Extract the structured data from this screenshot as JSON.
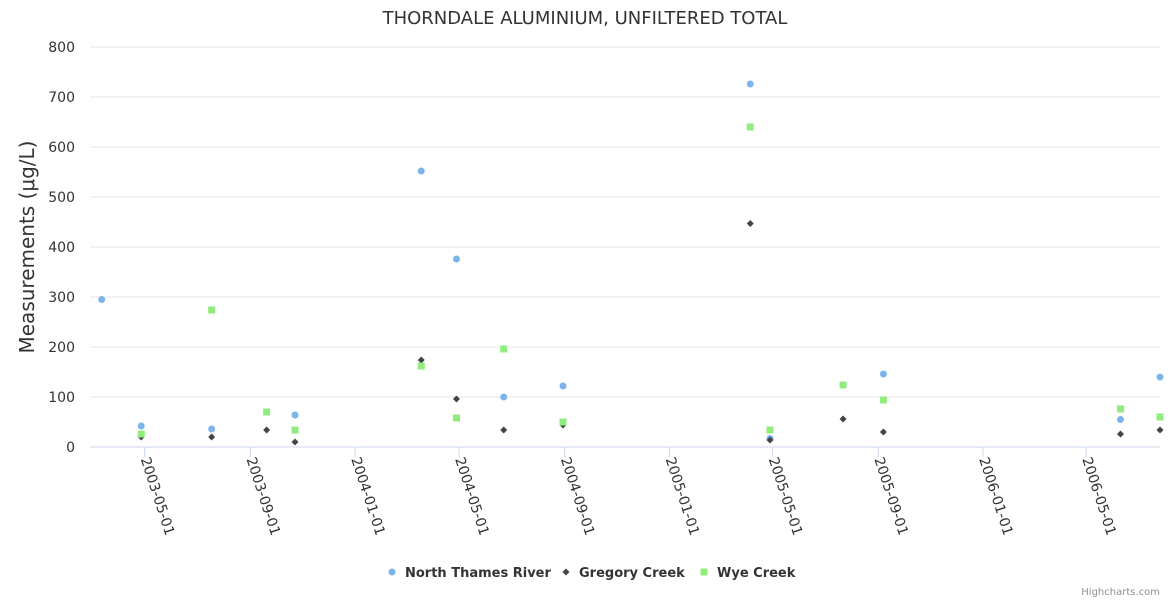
{
  "chart_data": {
    "type": "scatter",
    "title": "THORNDALE ALUMINIUM, UNFILTERED TOTAL",
    "ylabel": "Measurements (μg/L)",
    "xlabel": "",
    "ylim": [
      0,
      800
    ],
    "yticks": [
      0,
      100,
      200,
      300,
      400,
      500,
      600,
      700,
      800
    ],
    "xlim": [
      "2003-03-10",
      "2006-07-26"
    ],
    "xticks": [
      "2003-05-01",
      "2003-09-01",
      "2004-01-01",
      "2004-05-01",
      "2004-09-01",
      "2005-01-01",
      "2005-05-01",
      "2005-09-01",
      "2006-01-01",
      "2006-05-01"
    ],
    "grid": true,
    "legend_position": "bottom-center",
    "series": [
      {
        "name": "North Thames River",
        "color": "#7cb5ec",
        "marker": "circle",
        "points": [
          {
            "x": "2003-03-12",
            "y": 295
          },
          {
            "x": "2003-04-27",
            "y": 42
          },
          {
            "x": "2003-07-18",
            "y": 36
          },
          {
            "x": "2003-10-23",
            "y": 64
          },
          {
            "x": "2004-03-18",
            "y": 552
          },
          {
            "x": "2004-04-28",
            "y": 376
          },
          {
            "x": "2004-06-22",
            "y": 100
          },
          {
            "x": "2004-08-30",
            "y": 122
          },
          {
            "x": "2005-04-05",
            "y": 726
          },
          {
            "x": "2005-04-28",
            "y": 17
          },
          {
            "x": "2005-09-07",
            "y": 146
          },
          {
            "x": "2006-06-10",
            "y": 55
          },
          {
            "x": "2006-07-26",
            "y": 140
          }
        ]
      },
      {
        "name": "Gregory Creek",
        "color": "#434348",
        "marker": "diamond",
        "points": [
          {
            "x": "2003-04-27",
            "y": 20
          },
          {
            "x": "2003-07-18",
            "y": 20
          },
          {
            "x": "2003-09-20",
            "y": 34
          },
          {
            "x": "2003-10-23",
            "y": 10
          },
          {
            "x": "2004-03-18",
            "y": 174
          },
          {
            "x": "2004-04-28",
            "y": 96
          },
          {
            "x": "2004-06-22",
            "y": 34
          },
          {
            "x": "2004-08-30",
            "y": 44
          },
          {
            "x": "2005-04-05",
            "y": 447
          },
          {
            "x": "2005-04-28",
            "y": 14
          },
          {
            "x": "2005-07-22",
            "y": 56
          },
          {
            "x": "2005-09-07",
            "y": 30
          },
          {
            "x": "2006-06-10",
            "y": 26
          },
          {
            "x": "2006-07-26",
            "y": 34
          }
        ]
      },
      {
        "name": "Wye Creek",
        "color": "#90ed7d",
        "marker": "square",
        "points": [
          {
            "x": "2003-04-27",
            "y": 26
          },
          {
            "x": "2003-07-18",
            "y": 274
          },
          {
            "x": "2003-09-20",
            "y": 70
          },
          {
            "x": "2003-10-23",
            "y": 34
          },
          {
            "x": "2004-03-18",
            "y": 162
          },
          {
            "x": "2004-04-28",
            "y": 58
          },
          {
            "x": "2004-06-22",
            "y": 196
          },
          {
            "x": "2004-08-30",
            "y": 50
          },
          {
            "x": "2005-04-05",
            "y": 640
          },
          {
            "x": "2005-04-28",
            "y": 34
          },
          {
            "x": "2005-07-22",
            "y": 124
          },
          {
            "x": "2005-09-07",
            "y": 94
          },
          {
            "x": "2006-06-10",
            "y": 76
          },
          {
            "x": "2006-07-26",
            "y": 60
          }
        ]
      }
    ]
  },
  "credits": "Highcharts.com"
}
